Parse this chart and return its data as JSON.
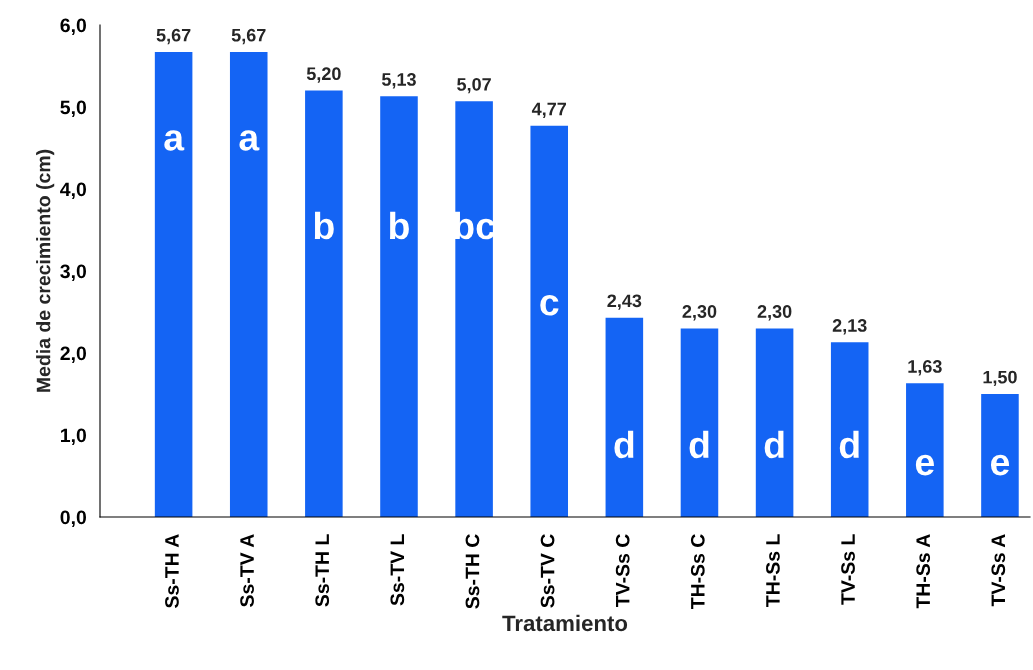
{
  "chart_data": {
    "type": "bar",
    "xlabel": "Tratamiento",
    "ylabel": "Media de crecimiento (cm)",
    "categories": [
      "Ss-TH A",
      "Ss-TV A",
      "Ss-TH L",
      "Ss-TV L",
      "Ss-TH C",
      "Ss-TV C",
      "TV-Ss C",
      "TH-Ss C",
      "TH-Ss L",
      "TV-Ss L",
      "TH-Ss A",
      "TV-Ss A"
    ],
    "values": [
      5.67,
      5.67,
      5.2,
      5.13,
      5.07,
      4.77,
      2.43,
      2.3,
      2.3,
      2.13,
      1.63,
      1.5
    ],
    "value_labels": [
      "5,67",
      "5,67",
      "5,20",
      "5,13",
      "5,07",
      "4,77",
      "2,43",
      "2,30",
      "2,30",
      "2,13",
      "1,63",
      "1,50"
    ],
    "color": "#1464f4",
    "ylim": [
      0,
      6
    ],
    "yticks": [
      {
        "value": 0,
        "label": "0,0"
      },
      {
        "value": 1,
        "label": "1,0"
      },
      {
        "value": 2,
        "label": "2,0"
      },
      {
        "value": 3,
        "label": "3,0"
      },
      {
        "value": 4,
        "label": "4,0"
      },
      {
        "value": 5,
        "label": "5,0"
      },
      {
        "value": 6,
        "label": "6,0"
      }
    ],
    "grid": false,
    "legend": false,
    "annotations": [
      "a",
      "a",
      "b",
      "b",
      "bc",
      "c",
      "d",
      "d",
      "d",
      "d",
      "e",
      "e"
    ]
  }
}
